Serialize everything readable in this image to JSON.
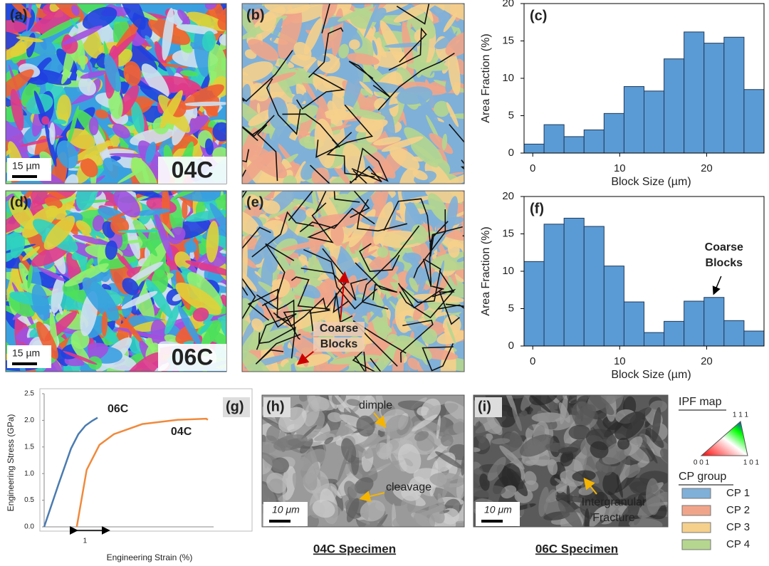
{
  "chart_data": [
    {
      "type": "histogram",
      "title": "(c)",
      "xlabel": "Block Size (µm)",
      "ylabel": "Area Fraction (%)",
      "bins": [
        -1,
        1.3,
        3.6,
        5.9,
        8.2,
        10.5,
        12.8,
        15.1,
        17.4,
        19.7,
        22,
        24.3,
        26.6
      ],
      "values": [
        1.2,
        3.8,
        2.2,
        3.1,
        5.3,
        8.9,
        8.3,
        12.6,
        16.2,
        14.7,
        15.5,
        8.5
      ],
      "color": "#5b9bd5",
      "xlim": [
        -1,
        26.6
      ],
      "ylim": [
        0,
        20
      ],
      "xticks": [
        0,
        10,
        20
      ],
      "yticks": [
        0,
        5,
        10,
        15,
        20
      ]
    },
    {
      "type": "histogram",
      "title": "(f)",
      "xlabel": "Block Size (µm)",
      "ylabel": "Area Fraction (%)",
      "bins": [
        -1,
        1.3,
        3.6,
        5.9,
        8.2,
        10.5,
        12.8,
        15.1,
        17.4,
        19.7,
        22,
        24.3,
        26.6
      ],
      "values": [
        11.3,
        16.3,
        17.1,
        16.0,
        10.7,
        5.9,
        1.8,
        3.3,
        6.0,
        6.5,
        3.4,
        2.0
      ],
      "color": "#5b9bd5",
      "xlim": [
        -1,
        26.6
      ],
      "ylim": [
        0,
        20
      ],
      "xticks": [
        0,
        10,
        20
      ],
      "yticks": [
        0,
        5,
        10,
        15,
        20
      ],
      "annotation": [
        "Coarse",
        "Blocks"
      ]
    },
    {
      "type": "line",
      "title": "(g)",
      "xlabel": "Engineering Strain (%)",
      "ylabel": "Engineering Stress (GPa)",
      "xlim": [
        0,
        5.3
      ],
      "ylim": [
        0,
        2.5
      ],
      "yticks": [
        {
          "value": 0,
          "label": "0.0"
        },
        {
          "value": 0.5,
          "label": "0.5"
        },
        {
          "value": 1,
          "label": "1.0"
        },
        {
          "value": 1.5,
          "label": "1.5"
        },
        {
          "value": 2,
          "label": "2.0"
        },
        {
          "value": 2.5,
          "label": "2.5"
        }
      ],
      "scale_bar": 1,
      "series": [
        {
          "name": "06C",
          "color": "#4a7bb0",
          "x": [
            0,
            0.45,
            0.84,
            1.07,
            1.29,
            1.5,
            1.67
          ],
          "values": [
            0,
            0.8,
            1.47,
            1.74,
            1.9,
            1.99,
            2.05
          ]
        },
        {
          "name": "04C",
          "color": "#f08a3c",
          "x": [
            1.02,
            1.33,
            1.73,
            2.18,
            3.07,
            4.18,
            5.07,
            5.12
          ],
          "values": [
            0,
            1.07,
            1.54,
            1.74,
            1.93,
            2.01,
            2.03,
            2.01
          ]
        }
      ]
    }
  ],
  "figure": {
    "panel_labels": [
      "(a)",
      "(b)",
      "(d)",
      "(e)",
      "(h)",
      "(i)"
    ],
    "ebsd_scale": "15 µm",
    "sem_scale": "10 μm",
    "specimens": [
      "04C",
      "06C"
    ],
    "coarse_blocks": [
      "Coarse",
      "Blocks"
    ],
    "sem_notes": [
      "dimple",
      "cleavage"
    ],
    "intergranular": [
      "Intergranular",
      "Fracture"
    ],
    "specimen_captions": [
      "04C Specimen",
      "06C Specimen"
    ],
    "ipf_title": "IPF map",
    "ipf_corners": [
      "1 1 1",
      "0 0 1",
      "1 0 1"
    ],
    "cp_title": "CP group",
    "cp_groups": [
      {
        "name": "CP 1",
        "color": "#7fb0d8"
      },
      {
        "name": "CP 2",
        "color": "#f0a58a"
      },
      {
        "name": "CP 3",
        "color": "#f5d08c"
      },
      {
        "name": "CP 4",
        "color": "#b5d68f"
      }
    ]
  }
}
